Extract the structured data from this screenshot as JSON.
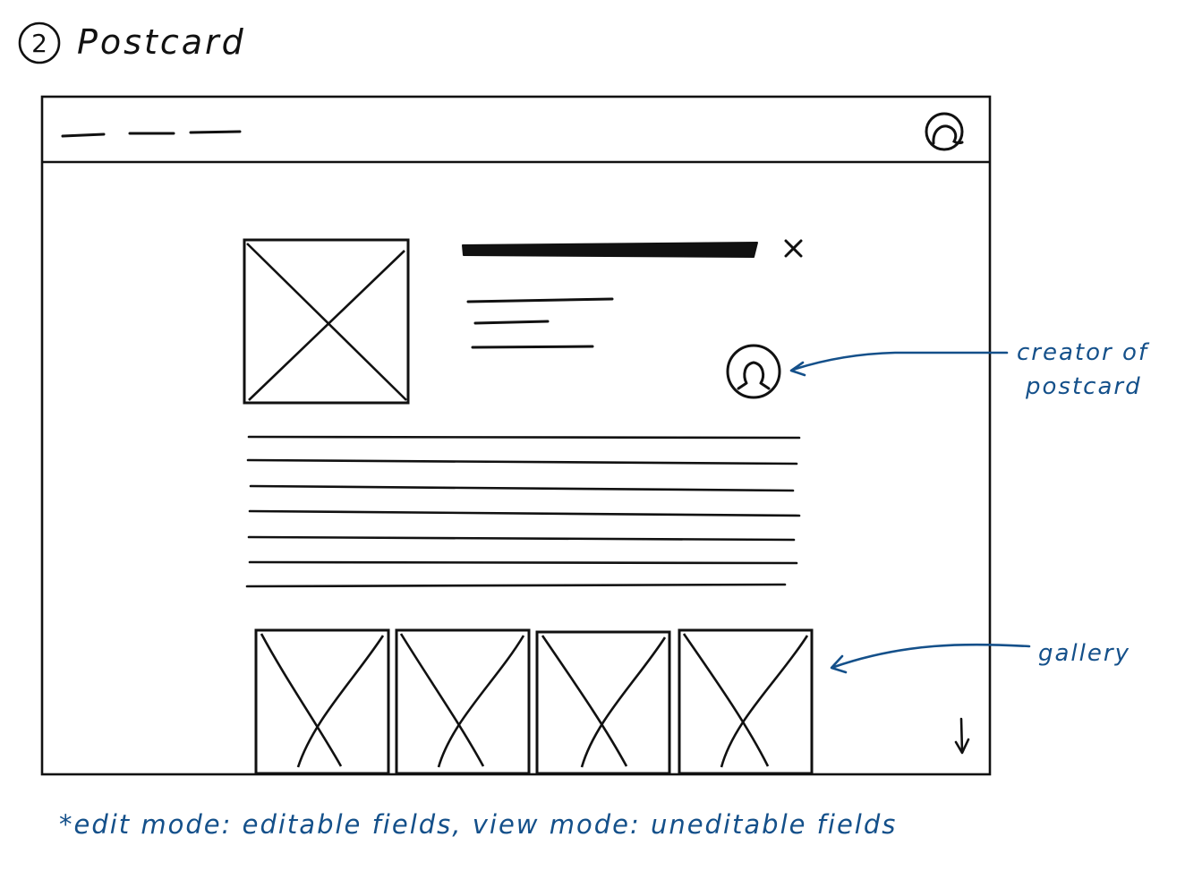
{
  "header": {
    "number": "2",
    "title": "Postcard"
  },
  "annotations": {
    "creator_label_line1": "creator of",
    "creator_label_line2": "postcard",
    "gallery_label": "gallery",
    "footnote": "*edit mode: editable fields, view mode: uneditable fields"
  },
  "colors": {
    "ink": "#111111",
    "annotation_ink": "#14508a"
  },
  "icons": {
    "nav_avatar": "user-avatar-icon",
    "creator_avatar": "user-avatar-icon",
    "close": "close-icon",
    "scroll": "arrow-down-icon",
    "image_placeholder": "image-placeholder-icon"
  }
}
